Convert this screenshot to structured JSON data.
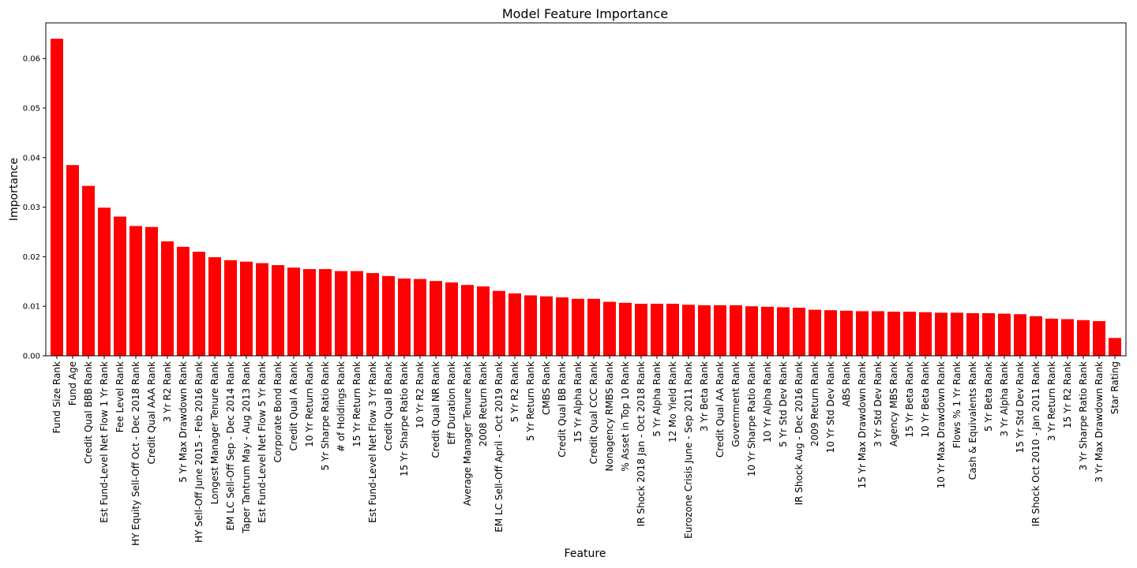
{
  "chart_data": {
    "type": "bar",
    "title": "Model Feature Importance",
    "xlabel": "Feature",
    "ylabel": "Importance",
    "ylim": [
      0,
      0.0672
    ],
    "yticks": [
      0.0,
      0.01,
      0.02,
      0.03,
      0.04,
      0.05,
      0.06
    ],
    "ytick_labels": [
      "0.00",
      "0.01",
      "0.02",
      "0.03",
      "0.04",
      "0.05",
      "0.06"
    ],
    "bar_color": "#ff0000",
    "grid": false,
    "categories": [
      "Fund Size Rank",
      "Fund Age",
      "Credit Qual BBB Rank",
      "Est Fund-Level Net Flow 1 Yr Rank",
      "Fee Level Rank",
      "HY Equity Sell-Off Oct - Dec 2018 Rank",
      "Credit Qual AAA Rank",
      "3 Yr R2 Rank",
      "5 Yr Max Drawdown Rank",
      "HY Sell-Off June 2015 - Feb 2016 Rank",
      "Longest Manager Tenure Rank",
      "EM LC Sell-Off Sep - Dec 2014 Rank",
      "Taper Tantrum May - Aug 2013 Rank",
      "Est Fund-Level Net Flow 5 Yr Rank",
      "Corporate Bond Rank",
      "Credit Qual A Rank",
      "10 Yr Return Rank",
      "5 Yr Sharpe Ratio Rank",
      "# of Holdings Rank",
      "15 Yr Return Rank",
      "Est Fund-Level Net Flow 3 Yr Rank",
      "Credit Qual B Rank",
      "15 Yr Sharpe Ratio Rank",
      "10 Yr R2 Rank",
      "Credit Qual NR Rank",
      "Eff Duration Rank",
      "Average Manager Tenure Rank",
      "2008 Return Rank",
      "EM LC Sell-Off April - Oct 2019 Rank",
      "5 Yr R2 Rank",
      "5 Yr Return Rank",
      "CMBS Rank",
      "Credit Qual BB Rank",
      "15 Yr Alpha Rank",
      "Credit Qual CCC Rank",
      "Nonagency RMBS Rank",
      "% Asset in Top 10 Rank",
      "IR Shock 2018 Jan - Oct 2018 Rank",
      "5 Yr Alpha Rank",
      "12 Mo Yield Rank",
      "Eurozone Crisis June - Sep 2011 Rank",
      "3 Yr Beta Rank",
      "Credit Qual AA Rank",
      "Government Rank",
      "10 Yr Sharpe Ratio Rank",
      "10 Yr Alpha Rank",
      "5 Yr Std Dev Rank",
      "IR Shock Aug - Dec 2016 Rank",
      "2009 Return Rank",
      "10 Yr Std Dev Rank",
      "ABS Rank",
      "15 Yr Max Drawdown Rank",
      "3 Yr Std Dev Rank",
      "Agency MBS Rank",
      "15 Yr Beta Rank",
      "10 Yr Beta Rank",
      "10 Yr Max Drawdown Rank",
      "Flows % 1 Yr Rank",
      "Cash & Equivalents Rank",
      "5 Yr Beta Rank",
      "3 Yr Alpha Rank",
      "15 Yr Std Dev Rank",
      "IR Shock Oct 2010 - Jan 2011 Rank",
      "3 Yr Return Rank",
      "15 Yr R2 Rank",
      "3 Yr Sharpe Ratio Rank",
      "3 Yr Max Drawdown Rank",
      "Star Rating"
    ],
    "values": [
      0.064,
      0.0385,
      0.0343,
      0.0299,
      0.0281,
      0.0262,
      0.026,
      0.0231,
      0.022,
      0.021,
      0.0199,
      0.0193,
      0.019,
      0.0187,
      0.0183,
      0.0178,
      0.0175,
      0.0175,
      0.0171,
      0.0171,
      0.0167,
      0.0161,
      0.0156,
      0.0155,
      0.0151,
      0.0148,
      0.0143,
      0.014,
      0.0131,
      0.0126,
      0.0122,
      0.012,
      0.0118,
      0.0115,
      0.0115,
      0.0109,
      0.0107,
      0.0105,
      0.0105,
      0.0105,
      0.0103,
      0.0102,
      0.0102,
      0.0102,
      0.01,
      0.0099,
      0.0098,
      0.0097,
      0.0093,
      0.0092,
      0.0091,
      0.009,
      0.009,
      0.0089,
      0.0089,
      0.0088,
      0.0087,
      0.0087,
      0.0086,
      0.0086,
      0.0085,
      0.0084,
      0.008,
      0.0075,
      0.0074,
      0.0072,
      0.007,
      0.0036
    ]
  }
}
